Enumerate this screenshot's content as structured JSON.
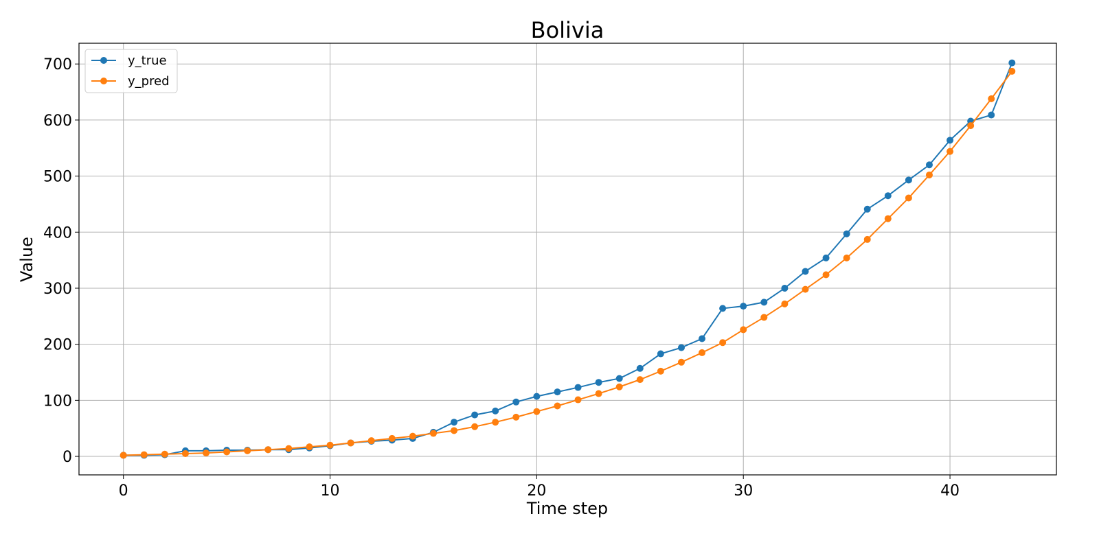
{
  "chart_data": {
    "type": "line",
    "title": "Bolivia",
    "xlabel": "Time step",
    "ylabel": "Value",
    "xlim": [
      -2.15,
      45.15
    ],
    "ylim": [
      -33,
      737
    ],
    "xticks": [
      0,
      10,
      20,
      30,
      40
    ],
    "yticks": [
      0,
      100,
      200,
      300,
      400,
      500,
      600,
      700
    ],
    "grid": true,
    "legend_position": "top-left",
    "x": [
      0,
      1,
      2,
      3,
      4,
      5,
      6,
      7,
      8,
      9,
      10,
      11,
      12,
      13,
      14,
      15,
      16,
      17,
      18,
      19,
      20,
      21,
      22,
      23,
      24,
      25,
      26,
      27,
      28,
      29,
      30,
      31,
      32,
      33,
      34,
      35,
      36,
      37,
      38,
      39,
      40,
      41,
      42,
      43
    ],
    "series": [
      {
        "name": "y_true",
        "color": "#1f77b4",
        "marker": "circle",
        "values": [
          2,
          2,
          3,
          10,
          10,
          11,
          11,
          12,
          12,
          15,
          19,
          24,
          27,
          29,
          32,
          43,
          61,
          74,
          81,
          97,
          107,
          115,
          123,
          132,
          139,
          157,
          183,
          194,
          210,
          264,
          268,
          275,
          300,
          330,
          354,
          397,
          441,
          465,
          493,
          520,
          564,
          598,
          609,
          702
        ]
      },
      {
        "name": "y_pred",
        "color": "#ff7f0e",
        "marker": "circle",
        "values": [
          2,
          3,
          4,
          5,
          6,
          8,
          10,
          12,
          14,
          17,
          20,
          24,
          28,
          32,
          36,
          41,
          46,
          53,
          61,
          70,
          80,
          90,
          101,
          112,
          124,
          137,
          152,
          168,
          185,
          203,
          226,
          248,
          272,
          298,
          324,
          354,
          387,
          424,
          461,
          502,
          544,
          590,
          638,
          687
        ]
      }
    ]
  }
}
